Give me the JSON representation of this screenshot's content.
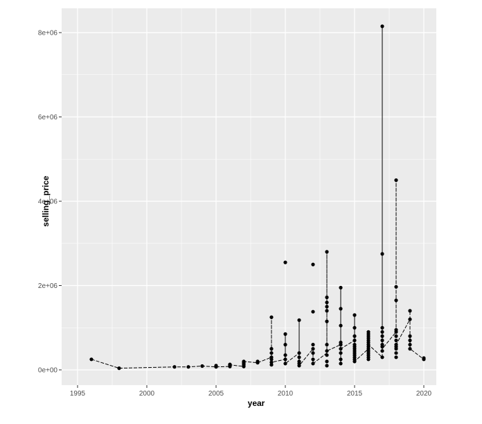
{
  "chart_data": {
    "type": "scatter",
    "title": "",
    "xlabel": "year",
    "ylabel": "selling_price",
    "xlim": [
      1995,
      2020
    ],
    "ylim": [
      0,
      8000000
    ],
    "x_ticks": [
      1995,
      2000,
      2005,
      2010,
      2015,
      2020
    ],
    "x_tick_labels": [
      "1995",
      "2000",
      "2005",
      "2010",
      "2015",
      "2020"
    ],
    "y_ticks": [
      0,
      2000000,
      4000000,
      6000000,
      8000000
    ],
    "y_tick_labels": [
      "0e+00",
      "2e+06",
      "4e+06",
      "6e+06",
      "8e+06"
    ],
    "grid": true,
    "legend": "none",
    "colors": {
      "panel_bg": "#ebebeb",
      "grid": "#ffffff",
      "points": "#000000"
    },
    "points": [
      [
        1996,
        250000
      ],
      [
        1998,
        40000
      ],
      [
        2002,
        70000
      ],
      [
        2003,
        70000
      ],
      [
        2004,
        90000
      ],
      [
        2005,
        70000
      ],
      [
        2005,
        90000
      ],
      [
        2005,
        100000
      ],
      [
        2006,
        80000
      ],
      [
        2006,
        100000
      ],
      [
        2006,
        120000
      ],
      [
        2006,
        130000
      ],
      [
        2007,
        80000
      ],
      [
        2007,
        120000
      ],
      [
        2007,
        150000
      ],
      [
        2007,
        180000
      ],
      [
        2007,
        200000
      ],
      [
        2008,
        170000
      ],
      [
        2008,
        200000
      ],
      [
        2009,
        120000
      ],
      [
        2009,
        180000
      ],
      [
        2009,
        250000
      ],
      [
        2009,
        300000
      ],
      [
        2009,
        400000
      ],
      [
        2009,
        500000
      ],
      [
        2009,
        1250000
      ],
      [
        2010,
        150000
      ],
      [
        2010,
        250000
      ],
      [
        2010,
        350000
      ],
      [
        2010,
        600000
      ],
      [
        2010,
        850000
      ],
      [
        2010,
        2550000
      ],
      [
        2011,
        100000
      ],
      [
        2011,
        150000
      ],
      [
        2011,
        200000
      ],
      [
        2011,
        300000
      ],
      [
        2011,
        400000
      ],
      [
        2011,
        1180000
      ],
      [
        2012,
        150000
      ],
      [
        2012,
        250000
      ],
      [
        2012,
        400000
      ],
      [
        2012,
        500000
      ],
      [
        2012,
        600000
      ],
      [
        2012,
        1380000
      ],
      [
        2012,
        2500000
      ],
      [
        2013,
        100000
      ],
      [
        2013,
        200000
      ],
      [
        2013,
        350000
      ],
      [
        2013,
        450000
      ],
      [
        2013,
        600000
      ],
      [
        2013,
        1150000
      ],
      [
        2013,
        1400000
      ],
      [
        2013,
        1500000
      ],
      [
        2013,
        1600000
      ],
      [
        2013,
        1720000
      ],
      [
        2013,
        2800000
      ],
      [
        2014,
        150000
      ],
      [
        2014,
        250000
      ],
      [
        2014,
        400000
      ],
      [
        2014,
        500000
      ],
      [
        2014,
        600000
      ],
      [
        2014,
        650000
      ],
      [
        2014,
        1050000
      ],
      [
        2014,
        1450000
      ],
      [
        2014,
        1950000
      ],
      [
        2015,
        200000
      ],
      [
        2015,
        250000
      ],
      [
        2015,
        300000
      ],
      [
        2015,
        350000
      ],
      [
        2015,
        400000
      ],
      [
        2015,
        450000
      ],
      [
        2015,
        500000
      ],
      [
        2015,
        550000
      ],
      [
        2015,
        600000
      ],
      [
        2015,
        700000
      ],
      [
        2015,
        800000
      ],
      [
        2015,
        1000000
      ],
      [
        2015,
        1300000
      ],
      [
        2016,
        250000
      ],
      [
        2016,
        300000
      ],
      [
        2016,
        350000
      ],
      [
        2016,
        400000
      ],
      [
        2016,
        450000
      ],
      [
        2016,
        500000
      ],
      [
        2016,
        550000
      ],
      [
        2016,
        600000
      ],
      [
        2016,
        650000
      ],
      [
        2016,
        700000
      ],
      [
        2016,
        750000
      ],
      [
        2016,
        800000
      ],
      [
        2016,
        850000
      ],
      [
        2016,
        900000
      ],
      [
        2017,
        300000
      ],
      [
        2017,
        450000
      ],
      [
        2017,
        550000
      ],
      [
        2017,
        600000
      ],
      [
        2017,
        700000
      ],
      [
        2017,
        800000
      ],
      [
        2017,
        900000
      ],
      [
        2017,
        1000000
      ],
      [
        2017,
        2750000
      ],
      [
        2017,
        8150000
      ],
      [
        2018,
        300000
      ],
      [
        2018,
        400000
      ],
      [
        2018,
        500000
      ],
      [
        2018,
        550000
      ],
      [
        2018,
        600000
      ],
      [
        2018,
        700000
      ],
      [
        2018,
        800000
      ],
      [
        2018,
        900000
      ],
      [
        2018,
        950000
      ],
      [
        2018,
        1650000
      ],
      [
        2018,
        1970000
      ],
      [
        2018,
        4500000
      ],
      [
        2019,
        500000
      ],
      [
        2019,
        600000
      ],
      [
        2019,
        700000
      ],
      [
        2019,
        800000
      ],
      [
        2019,
        1200000
      ],
      [
        2019,
        1400000
      ],
      [
        2020,
        250000
      ],
      [
        2020,
        280000
      ]
    ],
    "path": [
      [
        1996,
        250000
      ],
      [
        1998,
        40000
      ],
      [
        2002,
        70000
      ],
      [
        2003,
        70000
      ],
      [
        2004,
        90000
      ],
      [
        2005,
        70000
      ],
      [
        2006,
        80000
      ],
      [
        2006,
        120000
      ],
      [
        2007,
        80000
      ],
      [
        2007,
        200000
      ],
      [
        2008,
        170000
      ],
      [
        2009,
        300000
      ],
      [
        2009,
        1250000
      ],
      [
        2009,
        180000
      ],
      [
        2010,
        250000
      ],
      [
        2010,
        850000
      ],
      [
        2010,
        150000
      ],
      [
        2011,
        400000
      ],
      [
        2011,
        1180000
      ],
      [
        2011,
        100000
      ],
      [
        2012,
        500000
      ],
      [
        2012,
        150000
      ],
      [
        2013,
        400000
      ],
      [
        2013,
        2800000
      ],
      [
        2013,
        450000
      ],
      [
        2014,
        600000
      ],
      [
        2014,
        150000
      ],
      [
        2014,
        1950000
      ],
      [
        2014,
        500000
      ],
      [
        2015,
        700000
      ],
      [
        2015,
        1300000
      ],
      [
        2015,
        200000
      ],
      [
        2016,
        500000
      ],
      [
        2016,
        900000
      ],
      [
        2016,
        600000
      ],
      [
        2017,
        300000
      ],
      [
        2017,
        8150000
      ],
      [
        2017,
        500000
      ],
      [
        2018,
        900000
      ],
      [
        2018,
        1650000
      ],
      [
        2018,
        4500000
      ],
      [
        2018,
        600000
      ],
      [
        2019,
        1200000
      ],
      [
        2019,
        1400000
      ],
      [
        2019,
        500000
      ],
      [
        2020,
        250000
      ]
    ]
  }
}
